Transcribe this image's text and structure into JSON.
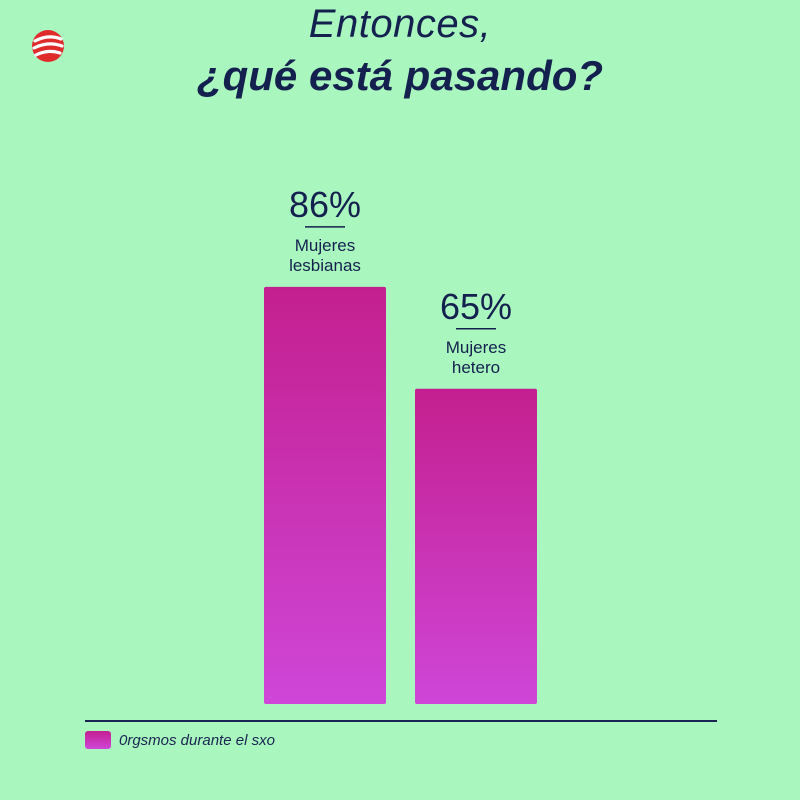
{
  "header": {
    "title_line1": "Entonces,",
    "title_line2": "¿qué está pasando?"
  },
  "logo": {
    "icon": "brand-logo-icon",
    "color": "#e02b2b"
  },
  "colors": {
    "background": "#a9f7bf",
    "bar_top": "#c41f8f",
    "bar_bottom": "#cf46d8",
    "text": "#14204e"
  },
  "chart_data": {
    "type": "bar",
    "categories": [
      "Mujeres lesbianas",
      "Mujeres hetero"
    ],
    "category_lines": [
      [
        "Mujeres",
        "lesbianas"
      ],
      [
        "Mujeres",
        "hetero"
      ]
    ],
    "values": [
      86,
      65
    ],
    "value_labels": [
      "86%",
      "65%"
    ],
    "series": [
      {
        "name": "0rgsmos durante el sxo",
        "values": [
          86,
          65
        ]
      }
    ],
    "ylim": [
      0,
      100
    ],
    "grid": false,
    "legend": "bottom-left"
  },
  "legend": {
    "label": "0rgsmos durante el sxo"
  }
}
